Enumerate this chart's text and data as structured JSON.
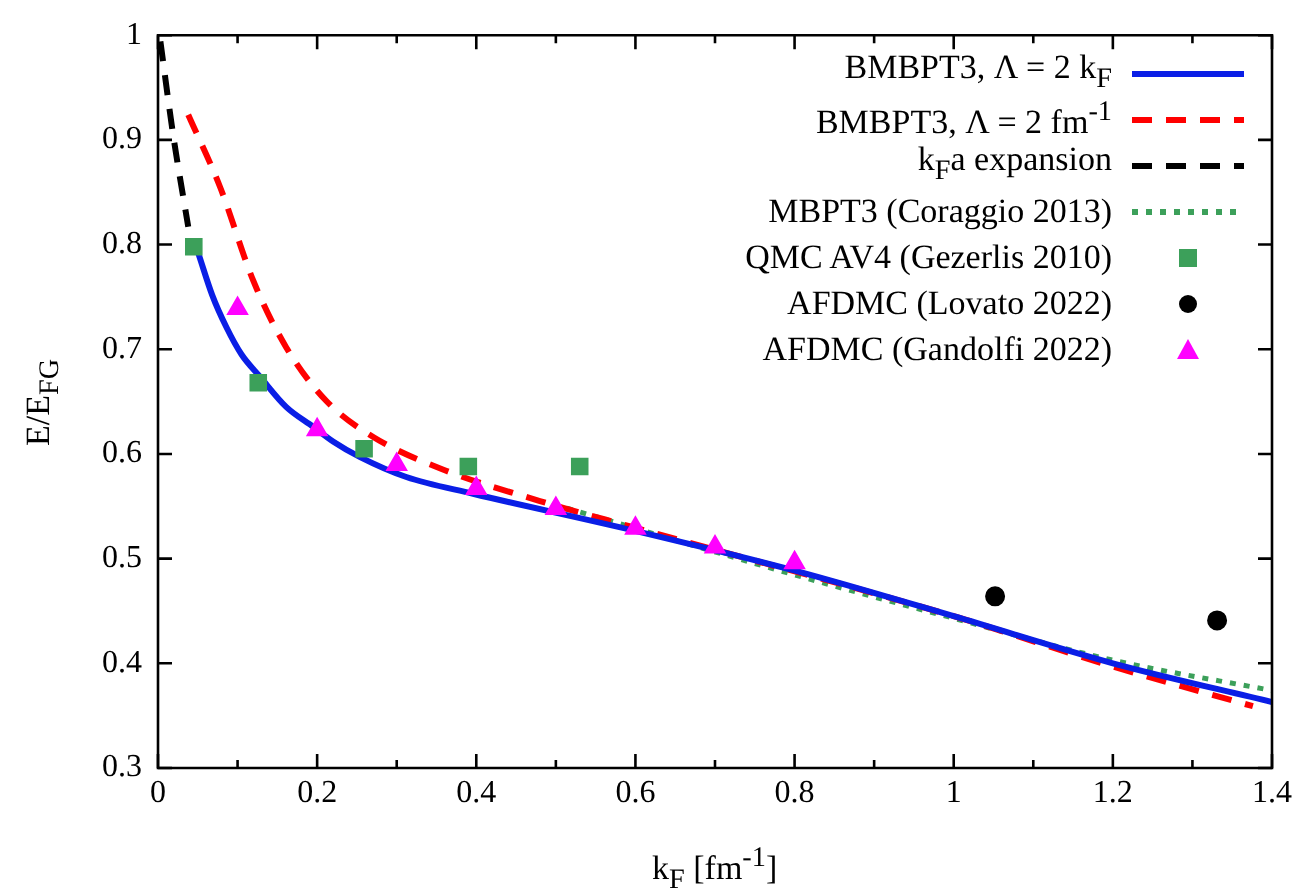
{
  "chart_data": {
    "type": "line",
    "xlabel": "k$_{F}$ [fm$^{-1}$]",
    "ylabel": "E/E$_{FG}$",
    "xlim": [
      0,
      1.4
    ],
    "ylim": [
      0.3,
      1
    ],
    "xticks": [
      0,
      {
        "value": 0.1,
        "label": null
      },
      0.2,
      {
        "value": 0.3,
        "label": null
      },
      0.4,
      {
        "value": 0.5,
        "label": null
      },
      0.6,
      {
        "value": 0.7,
        "label": null
      },
      0.8,
      {
        "value": 0.9,
        "label": null
      },
      1,
      {
        "value": 1.1,
        "label": null
      },
      1.2,
      {
        "value": 1.3,
        "label": null
      },
      1.4
    ],
    "yticks": [
      0.3,
      0.4,
      0.5,
      0.6,
      0.7,
      0.8,
      0.9,
      1
    ],
    "grid": false,
    "legend": "top right",
    "series": [
      {
        "name": "BMBPT3, Λ = 2 k$_{F}$",
        "type": "line",
        "color": "#0a1ee6",
        "marker": "none",
        "line_style": "solid",
        "x": [
          0.051,
          0.068,
          0.086,
          0.105,
          0.128,
          0.161,
          0.195,
          0.22,
          0.254,
          0.312,
          0.396,
          0.597,
          0.798,
          1.0,
          1.2,
          1.4
        ],
        "values": [
          0.791,
          0.752,
          0.721,
          0.695,
          0.674,
          0.645,
          0.626,
          0.612,
          0.597,
          0.578,
          0.562,
          0.527,
          0.489,
          0.445,
          0.4,
          0.363
        ]
      },
      {
        "name": "BMBPT3, Λ = 2 fm$^{-1}$",
        "type": "line",
        "color": "#ff0000",
        "marker": "none",
        "line_style": "dashed",
        "x": [
          0.038,
          0.078,
          0.12,
          0.161,
          0.211,
          0.271,
          0.362,
          0.48,
          0.597,
          1.0,
          1.2,
          1.376
        ],
        "values": [
          0.924,
          0.855,
          0.765,
          0.702,
          0.651,
          0.616,
          0.584,
          0.555,
          0.53,
          0.445,
          0.397,
          0.359
        ]
      },
      {
        "name": "k$_{F}$a expansion",
        "type": "line",
        "color": "#000000",
        "marker": "none",
        "line_style": "dashed",
        "x": [
          0.003,
          0.019,
          0.038
        ],
        "values": [
          0.994,
          0.905,
          0.817
        ]
      },
      {
        "name": "MBPT3 (Coraggio 2013)",
        "type": "line",
        "color": "#3ca05a",
        "marker": "none",
        "line_style": "dotted",
        "x": [
          0.497,
          0.807,
          1.0,
          1.2,
          1.4
        ],
        "values": [
          0.552,
          0.483,
          0.443,
          0.403,
          0.374
        ]
      },
      {
        "name": "QMC AV4 (Gezerlis 2010)",
        "type": "scatter",
        "color": "#3ca05a",
        "marker": "square",
        "x": [
          0.045,
          0.126,
          0.259,
          0.39,
          0.53
        ],
        "values": [
          0.798,
          0.668,
          0.605,
          0.588,
          0.588
        ]
      },
      {
        "name": "AFDMC (Lovato 2022)",
        "type": "scatter",
        "color": "#000000",
        "marker": "circle",
        "x": [
          1.052,
          1.331
        ],
        "values": [
          0.464,
          0.441
        ]
      },
      {
        "name": "AFDMC (Gandolfi 2022)",
        "type": "scatter",
        "color": "#ff00ff",
        "marker": "triangle",
        "x": [
          0.1,
          0.2,
          0.3,
          0.4,
          0.5,
          0.6,
          0.7,
          0.8
        ],
        "values": [
          0.739,
          0.623,
          0.59,
          0.567,
          0.548,
          0.529,
          0.511,
          0.496
        ]
      }
    ]
  }
}
